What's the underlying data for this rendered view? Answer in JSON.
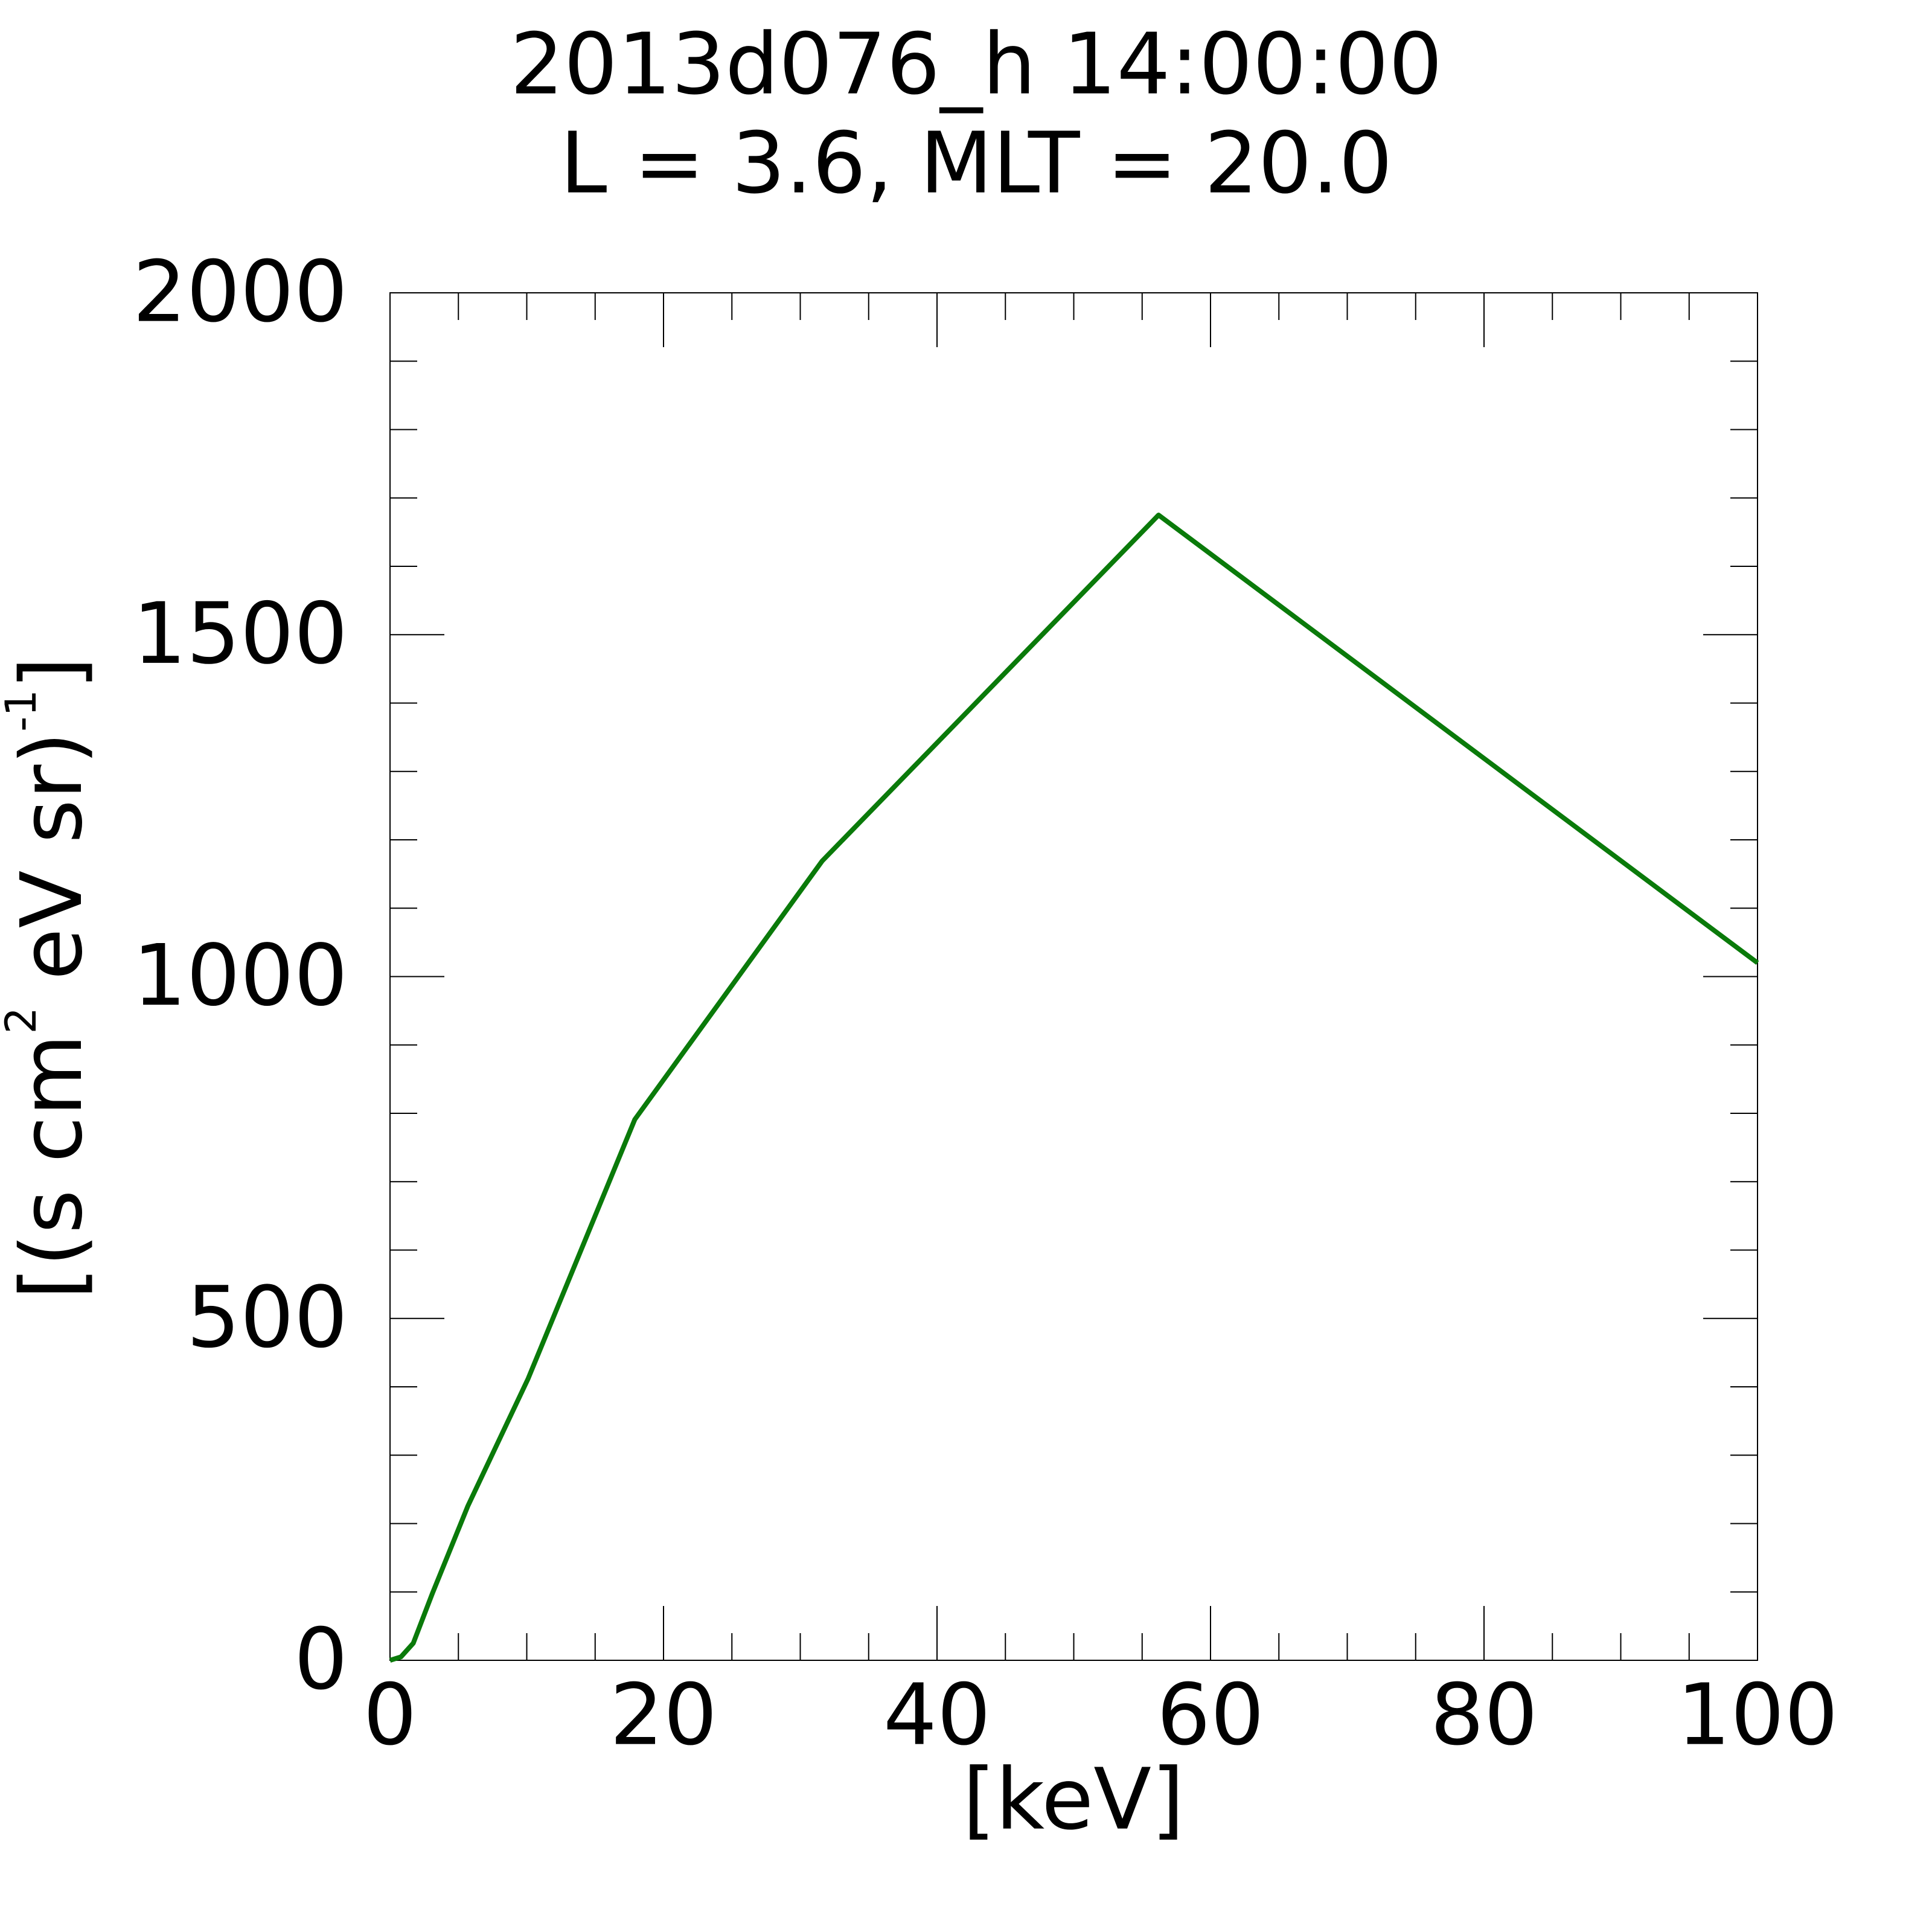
{
  "chart_data": {
    "type": "line",
    "title": "2013d076_h  14:00:00",
    "subtitle": "L = 3.6, MLT = 20.0",
    "xlabel": "[keV]",
    "ylabel_parts": [
      "[(s cm",
      "2",
      " eV sr)",
      "-1",
      "]"
    ],
    "x": [
      0,
      0.8,
      1.7,
      3.1,
      5.7,
      10.1,
      17.9,
      31.6,
      56.2,
      100
    ],
    "series": [
      {
        "color": "#0a7a0a",
        "values": [
          0,
          5,
          25,
          98,
          226,
          412,
          791,
          1169,
          1675,
          1020
        ]
      }
    ],
    "xlim": [
      0,
      100
    ],
    "ylim": [
      0,
      2000
    ],
    "xticks": [
      0,
      20,
      40,
      60,
      80,
      100
    ],
    "yticks": [
      0,
      500,
      1000,
      1500,
      2000
    ],
    "xminorticks": [
      5,
      10,
      15,
      25,
      30,
      35,
      45,
      50,
      55,
      65,
      70,
      75,
      85,
      90,
      95
    ],
    "yminorticks": [
      100,
      200,
      300,
      400,
      600,
      700,
      800,
      900,
      1100,
      1200,
      1300,
      1400,
      1600,
      1700,
      1800,
      1900
    ]
  }
}
